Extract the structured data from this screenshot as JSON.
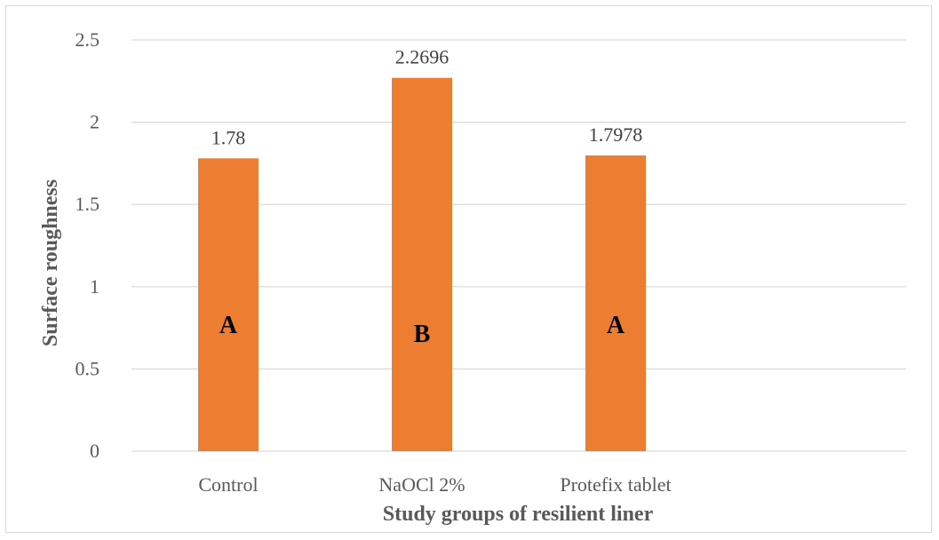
{
  "chart_data": {
    "type": "bar",
    "title": "",
    "xlabel": "Study groups of resilient liner",
    "ylabel": "Surface roughness",
    "categories": [
      "Control",
      "NaOCl 2%",
      "Protefix tablet"
    ],
    "values": [
      1.78,
      2.2696,
      1.7978
    ],
    "data_labels": [
      "1.78",
      "2.2696",
      "1.7978"
    ],
    "group_letters": [
      "A",
      "B",
      "A"
    ],
    "ylim": [
      0,
      2.5
    ],
    "yticks": [
      "0",
      "0.5",
      "1",
      "1.5",
      "2",
      "2.5"
    ],
    "grid": true,
    "legend": "none",
    "colors": {
      "bar": "#ED7D31",
      "grid": "#d9d9d9",
      "tick_text": "#595959"
    }
  }
}
